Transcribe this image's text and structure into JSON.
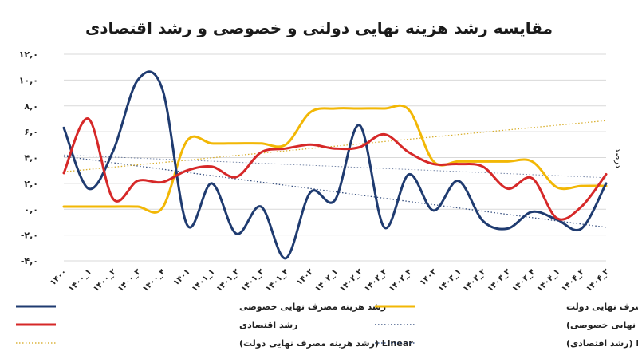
{
  "chart_data": {
    "type": "line",
    "title": "مقایسه رشد هزینه نهایی دولتی و خصوصی و رشد اقتصادی",
    "ylabel": "درصد",
    "xlabel": "",
    "ylim": [
      -4,
      12
    ],
    "yticks": [
      12,
      10,
      8,
      6,
      4,
      2,
      0,
      -2,
      -4
    ],
    "ytick_labels": [
      "۱۲,۰",
      "۱۰,۰",
      "۸,۰",
      "۶,۰",
      "۴,۰",
      "۲,۰",
      "۰,۰",
      "-۲,۰",
      "-۴,۰"
    ],
    "grid": true,
    "legend_position": "bottom",
    "categories": [
      "۱۴۰۰",
      "۱۴۰۰_۱",
      "۱۴۰۰_۲",
      "۱۴۰۰_۳",
      "۱۴۰۰_۴",
      "۱۴۰۱",
      "۱۴۰۱_۱",
      "۱۴۰۱_۲",
      "۱۴۰۱_۳",
      "۱۴۰۱_۴",
      "۱۴۰۲",
      "۱۴۰۲_۱",
      "۱۴۰۲_۲",
      "۱۴۰۲_۳",
      "۱۴۰۲_۴",
      "۱۴۰۳",
      "۱۴۰۳_۱",
      "۱۴۰۳_۲",
      "۱۴۰۳_۳",
      "۱۴۰۳_۴",
      "۱۴۰۴_۱",
      "۱۴۰۴_۲",
      "۱۴۰۴_۳"
    ],
    "series": [
      {
        "name": "رشد هزینه مصرف نهایی خصوصی",
        "color": "#1f3b70",
        "style": "solid",
        "values": [
          6.3,
          1.6,
          4.5,
          10.0,
          9.3,
          -1.2,
          2.0,
          -1.9,
          0.2,
          -3.8,
          1.3,
          0.7,
          6.5,
          -1.4,
          2.7,
          -0.1,
          2.2,
          -0.9,
          -1.5,
          -0.2,
          -0.8,
          -1.5,
          2.0
        ]
      },
      {
        "name": "رشد هزینه مصرف نهایی دولت",
        "color": "#f2b705",
        "style": "solid",
        "values": [
          0.2,
          0.2,
          0.2,
          0.2,
          0.1,
          5.3,
          5.1,
          5.1,
          5.1,
          5.0,
          7.5,
          7.8,
          7.8,
          7.8,
          7.7,
          3.7,
          3.7,
          3.7,
          3.7,
          3.7,
          1.7,
          1.8,
          1.8
        ]
      },
      {
        "name": "رشد اقتصادی",
        "color": "#d62828",
        "style": "solid",
        "values": [
          2.8,
          7.0,
          0.8,
          2.2,
          2.1,
          3.0,
          3.3,
          2.5,
          4.4,
          4.7,
          5.0,
          4.7,
          4.8,
          5.8,
          4.4,
          3.5,
          3.5,
          3.3,
          1.6,
          2.4,
          -0.7,
          0.2,
          2.7
        ]
      },
      {
        "name": "Linear (رشد هزینه مصرف نهایی خصوصی)",
        "color": "#1f3b70",
        "style": "dotted",
        "values": [
          4.1,
          3.85,
          3.6,
          3.35,
          3.1,
          2.85,
          2.6,
          2.35,
          2.1,
          1.85,
          1.6,
          1.35,
          1.1,
          0.85,
          0.6,
          0.35,
          0.1,
          -0.15,
          -0.4,
          -0.65,
          -0.9,
          -1.15,
          -1.4
        ]
      },
      {
        "name": "Linear (رشد هزینه مصرف نهایی دولت)",
        "color": "#d4a514",
        "style": "dotted",
        "values": [
          2.9,
          3.08,
          3.26,
          3.44,
          3.62,
          3.8,
          3.98,
          4.16,
          4.34,
          4.52,
          4.7,
          4.88,
          5.06,
          5.24,
          5.42,
          5.6,
          5.78,
          5.96,
          6.14,
          6.32,
          6.5,
          6.68,
          6.86
        ]
      },
      {
        "name": "Linear (رشد اقتصادی)",
        "color": "#1f3b70",
        "style": "dotted-light",
        "values": [
          4.2,
          4.12,
          4.04,
          3.96,
          3.88,
          3.8,
          3.72,
          3.64,
          3.56,
          3.48,
          3.4,
          3.32,
          3.24,
          3.16,
          3.08,
          3.0,
          2.92,
          2.84,
          2.76,
          2.68,
          2.6,
          2.52,
          2.44
        ]
      }
    ],
    "legend": [
      {
        "label": "رشد هزینه مصرف نهایی خصوصی",
        "series_index": 0,
        "col": "left",
        "row": 0
      },
      {
        "label": "رشد هزینه مصرف نهایی دولت",
        "series_index": 1,
        "col": "right",
        "row": 0
      },
      {
        "label": "رشد اقتصادی",
        "series_index": 2,
        "col": "left",
        "row": 1
      },
      {
        "label": "Linear (رشد هزینه مصرف نهایی خصوصی)",
        "series_index": 3,
        "col": "right",
        "row": 1
      },
      {
        "label": "Linear (رشد هزینه مصرف نهایی دولت)",
        "series_index": 4,
        "col": "left",
        "row": 2
      },
      {
        "label": "Linear (رشد اقتصادی)",
        "series_index": 5,
        "col": "right",
        "row": 2
      }
    ]
  }
}
